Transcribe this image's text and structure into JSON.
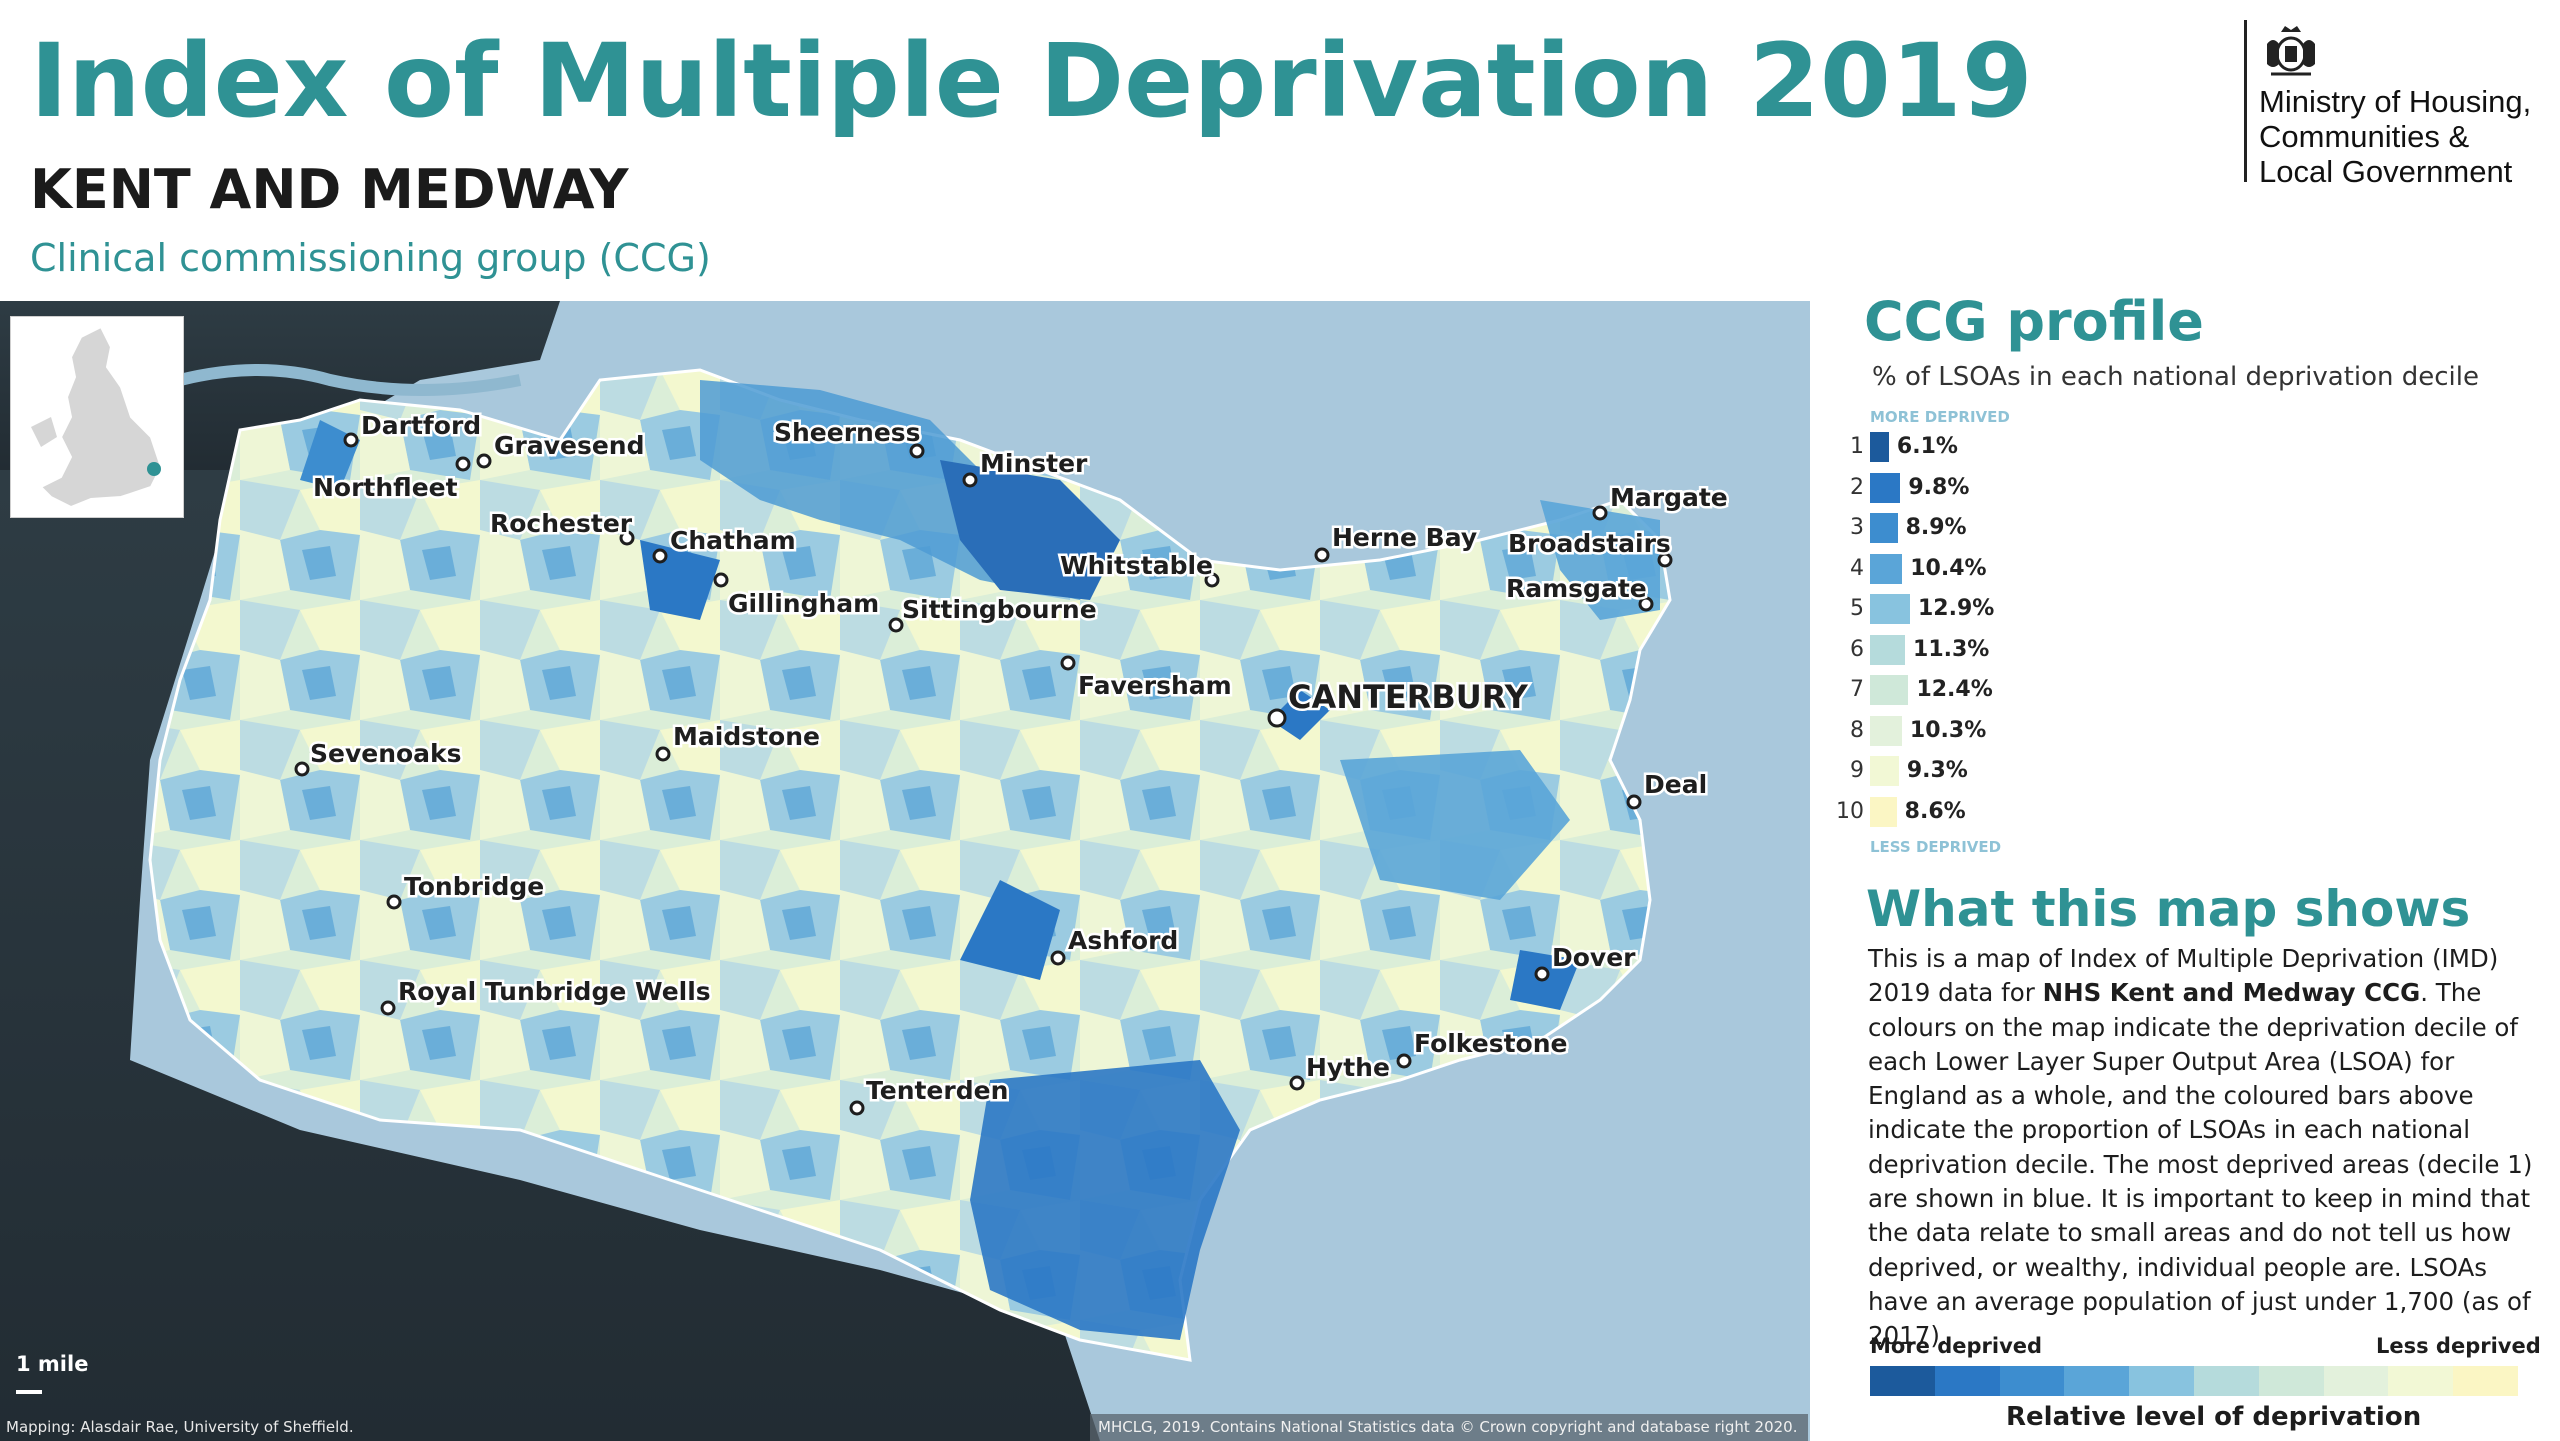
{
  "header": {
    "title": "Index of Multiple Deprivation 2019",
    "area": "KENT AND MEDWAY",
    "area_type": "Clinical commissioning group (CCG)"
  },
  "ministry": {
    "line1": "Ministry of Housing,",
    "line2": "Communities &",
    "line3": "Local Government",
    "crest_icon": "royal-crest-icon"
  },
  "map": {
    "scale_label": "1 mile",
    "credit_left": "Mapping: Alasdair Rae, University of Sheffield.",
    "credit_right": "MHCLG, 2019. Contains National Statistics data © Crown copyright and database right 2020.",
    "towns": [
      "Dartford",
      "Gravesend",
      "Northfleet",
      "Sheerness",
      "Minster",
      "Rochester",
      "Chatham",
      "Gillingham",
      "Sittingbourne",
      "Whitstable",
      "Herne Bay",
      "Margate",
      "Broadstairs",
      "Ramsgate",
      "Faversham",
      "CANTERBURY",
      "Maidstone",
      "Sevenoaks",
      "Deal",
      "Tonbridge",
      "Ashford",
      "Dover",
      "Royal Tunbridge Wells",
      "Folkestone",
      "Hythe",
      "Tenterden"
    ]
  },
  "profile": {
    "title": "CCG profile",
    "subtitle": "% of LSOAs in each national deprivation decile",
    "more_label": "MORE DEPRIVED",
    "less_label": "LESS DEPRIVED"
  },
  "chart_data": {
    "type": "bar",
    "title": "CCG profile",
    "subtitle": "% of LSOAs in each national deprivation decile",
    "orientation": "horizontal",
    "categories": [
      "1",
      "2",
      "3",
      "4",
      "5",
      "6",
      "7",
      "8",
      "9",
      "10"
    ],
    "values": [
      6.1,
      9.8,
      8.9,
      10.4,
      12.9,
      11.3,
      12.4,
      10.3,
      9.3,
      8.6
    ],
    "labels": [
      "6.1%",
      "9.8%",
      "8.9%",
      "10.4%",
      "12.9%",
      "11.3%",
      "12.4%",
      "10.3%",
      "9.3%",
      "8.6%"
    ],
    "colors": [
      "#1c5a9c",
      "#2b78c5",
      "#3d8dcf",
      "#5aa5d8",
      "#88c3df",
      "#b5dbdc",
      "#cfe8d9",
      "#e3f1dc",
      "#f2f8d5",
      "#fbf6c4"
    ],
    "legend": [
      "MORE DEPRIVED",
      "LESS DEPRIVED"
    ]
  },
  "explanation": {
    "title": "What this map shows",
    "text_1": "This is a map of Index of Multiple Deprivation (IMD) 2019 data for ",
    "text_bold": "NHS Kent and Medway CCG",
    "text_2": ". The colours on the map indicate the deprivation decile of each Lower Layer Super Output Area (LSOA) for England as a whole, and the coloured bars above indicate the proportion of LSOAs in each national deprivation decile. The most deprived areas (decile 1) are shown in blue. It is important to keep in mind that the data relate to small areas and do not tell us how deprived, or wealthy, individual people are. LSOAs have an average population of just under 1,700 (as of 2017)."
  },
  "legend": {
    "more": "More deprived",
    "less": "Less deprived",
    "caption": "Relative level of deprivation"
  }
}
